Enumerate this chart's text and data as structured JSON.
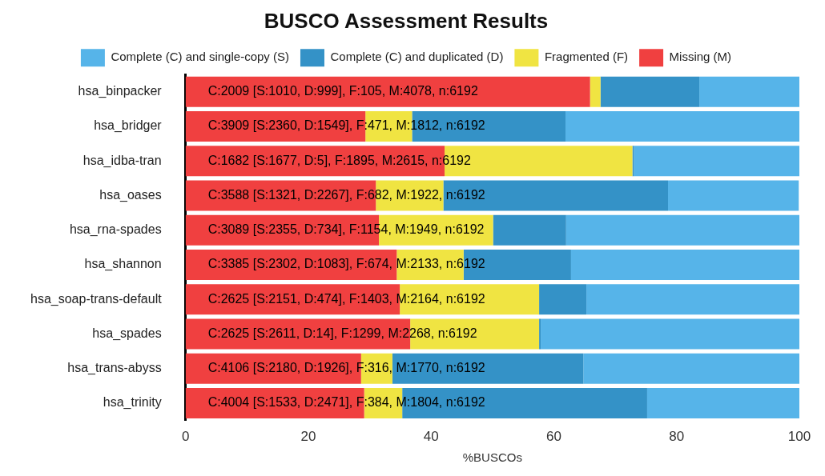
{
  "chart_data": {
    "type": "bar",
    "orientation": "horizontal",
    "stacked": true,
    "title": "BUSCO Assessment Results",
    "xlabel": "%BUSCOs",
    "categories": [
      "hsa_binpacker",
      "hsa_bridger",
      "hsa_idba-tran",
      "hsa_oases",
      "hsa_rna-spades",
      "hsa_shannon",
      "hsa_soap-trans-default",
      "hsa_spades",
      "hsa_trans-abyss",
      "hsa_trinity"
    ],
    "series": [
      {
        "name": "Missing (M)",
        "color": "#f04040",
        "values": [
          65.9,
          29.3,
          42.2,
          31.0,
          31.5,
          34.4,
          34.9,
          36.6,
          28.6,
          29.1
        ]
      },
      {
        "name": "Fragmented (F)",
        "color": "#f0e442",
        "values": [
          1.7,
          7.6,
          30.6,
          11.0,
          18.6,
          10.9,
          22.7,
          21.0,
          5.1,
          6.2
        ]
      },
      {
        "name": "Complete (C) and duplicated (D)",
        "color": "#3492c7",
        "values": [
          16.1,
          25.0,
          0.1,
          36.6,
          11.9,
          17.5,
          7.7,
          0.2,
          31.1,
          39.9
        ]
      },
      {
        "name": "Complete (C) and single-copy (S)",
        "color": "#56b4e9",
        "values": [
          16.3,
          38.1,
          27.1,
          21.3,
          38.0,
          37.2,
          34.7,
          42.2,
          35.2,
          24.8
        ]
      }
    ],
    "xlim": [
      0,
      100
    ],
    "xticks": [
      0,
      20,
      40,
      60,
      80,
      100
    ],
    "grid": false,
    "legend": "top",
    "annotations": [
      {
        "text": "C:2009 [S:1010, D:999], F:105, M:4078, n:6192",
        "y": "hsa_binpacker"
      },
      {
        "text": "C:3909 [S:2360, D:1549], F:471, M:1812, n:6192",
        "y": "hsa_bridger"
      },
      {
        "text": "C:1682 [S:1677, D:5], F:1895, M:2615, n:6192",
        "y": "hsa_idba-tran"
      },
      {
        "text": "C:3588 [S:1321, D:2267], F:682, M:1922, n:6192",
        "y": "hsa_oases"
      },
      {
        "text": "C:3089 [S:2355, D:734], F:1154, M:1949, n:6192",
        "y": "hsa_rna-spades"
      },
      {
        "text": "C:3385 [S:2302, D:1083], F:674, M:2133, n:6192",
        "y": "hsa_shannon"
      },
      {
        "text": "C:2625 [S:2151, D:474], F:1403, M:2164, n:6192",
        "y": "hsa_soap-trans-default"
      },
      {
        "text": "C:2625 [S:2611, D:14], F:1299, M:2268, n:6192",
        "y": "hsa_spades"
      },
      {
        "text": "C:4106 [S:2180, D:1926], F:316, M:1770, n:6192",
        "y": "hsa_trans-abyss"
      },
      {
        "text": "C:4004 [S:1533, D:2471], F:384, M:1804, n:6192",
        "y": "hsa_trinity"
      }
    ]
  }
}
